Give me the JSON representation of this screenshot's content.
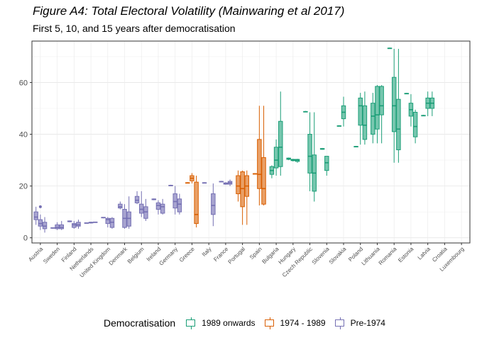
{
  "title": "Figure A4: Total Electoral Volatility (Mainwaring et al 2017)",
  "subtitle": "First 5, 10, and 15 years after democratisation",
  "legend": {
    "title": "Democratisation",
    "items": [
      {
        "label": "1989 onwards",
        "color": "#1b9e77",
        "fill": "#76c6ae"
      },
      {
        "label": "1974 - 1989",
        "color": "#d95f02",
        "fill": "#e9a067"
      },
      {
        "label": "Pre-1974",
        "color": "#7570b3",
        "fill": "#a8a4d0"
      }
    ]
  },
  "chart_data": {
    "type": "boxplot",
    "ylim": [
      -2,
      76
    ],
    "yticks": [
      0,
      20,
      40,
      60
    ],
    "grid": true,
    "legend_position": "bottom",
    "categories": [
      "Austria",
      "Sweden",
      "Finland",
      "Netherlands",
      "United Kingdom",
      "Denmark",
      "Belgium",
      "Ireland",
      "Germany",
      "Greece",
      "Italy",
      "France",
      "Portugal",
      "Spain",
      "Bulgaria",
      "Hungary",
      "Czech Republic",
      "Slovenia",
      "Slovakia",
      "Poland",
      "Lithuania",
      "Romania",
      "Estonia",
      "Latvia",
      "Croatia",
      "Luxembourg"
    ],
    "boxes": [
      {
        "country": "Austria",
        "group": "Pre-1974",
        "offset": -1,
        "min": 5,
        "q1": 7,
        "median": 8,
        "q3": 10,
        "max": 12
      },
      {
        "country": "Austria",
        "group": "Pre-1974",
        "offset": 0,
        "min": 3,
        "q1": 4.5,
        "median": 5.5,
        "q3": 7,
        "max": 9,
        "outliers": [
          12
        ]
      },
      {
        "country": "Austria",
        "group": "Pre-1974",
        "offset": 1,
        "min": 2,
        "q1": 3.5,
        "median": 4.5,
        "q3": 6,
        "max": 8
      },
      {
        "country": "Sweden",
        "group": "Pre-1974",
        "offset": -1,
        "min": 3.5,
        "q1": 3.7,
        "median": 3.8,
        "q3": 3.9,
        "max": 4
      },
      {
        "country": "Sweden",
        "group": "Pre-1974",
        "offset": 0,
        "min": 3,
        "q1": 3.5,
        "median": 4,
        "q3": 5,
        "max": 6
      },
      {
        "country": "Sweden",
        "group": "Pre-1974",
        "offset": 1,
        "min": 3,
        "q1": 3.5,
        "median": 4,
        "q3": 5,
        "max": 6.5
      },
      {
        "country": "Finland",
        "group": "Pre-1974",
        "offset": -1,
        "min": 6,
        "q1": 6.2,
        "median": 6.3,
        "q3": 6.5,
        "max": 6.7
      },
      {
        "country": "Finland",
        "group": "Pre-1974",
        "offset": 0,
        "min": 3.5,
        "q1": 4,
        "median": 5,
        "q3": 5.5,
        "max": 6.5
      },
      {
        "country": "Finland",
        "group": "Pre-1974",
        "offset": 1,
        "min": 3.5,
        "q1": 4.5,
        "median": 5,
        "q3": 6,
        "max": 7
      },
      {
        "country": "Netherlands",
        "group": "Pre-1974",
        "offset": -1,
        "min": 5.5,
        "q1": 5.6,
        "median": 5.7,
        "q3": 5.8,
        "max": 5.9
      },
      {
        "country": "Netherlands",
        "group": "Pre-1974",
        "offset": 0,
        "min": 5.5,
        "q1": 5.7,
        "median": 5.9,
        "q3": 6,
        "max": 6.2
      },
      {
        "country": "Netherlands",
        "group": "Pre-1974",
        "offset": 1,
        "min": 5.8,
        "q1": 5.9,
        "median": 6,
        "q3": 6.1,
        "max": 6.2
      },
      {
        "country": "United Kingdom",
        "group": "Pre-1974",
        "offset": -1,
        "min": 7.5,
        "q1": 7.7,
        "median": 7.8,
        "q3": 7.9,
        "max": 8
      },
      {
        "country": "United Kingdom",
        "group": "Pre-1974",
        "offset": 0,
        "min": 4,
        "q1": 5.5,
        "median": 7,
        "q3": 7.5,
        "max": 8
      },
      {
        "country": "United Kingdom",
        "group": "Pre-1974",
        "offset": 1,
        "min": 3.5,
        "q1": 4,
        "median": 6,
        "q3": 7.5,
        "max": 8
      },
      {
        "country": "Denmark",
        "group": "Pre-1974",
        "offset": -1,
        "min": 11,
        "q1": 11.5,
        "median": 12,
        "q3": 13,
        "max": 14
      },
      {
        "country": "Denmark",
        "group": "Pre-1974",
        "offset": 0,
        "min": 3.5,
        "q1": 4,
        "median": 7.5,
        "q3": 11,
        "max": 13
      },
      {
        "country": "Denmark",
        "group": "Pre-1974",
        "offset": 1,
        "min": 3.5,
        "q1": 4.5,
        "median": 7.5,
        "q3": 10,
        "max": 16
      },
      {
        "country": "Belgium",
        "group": "Pre-1974",
        "offset": -1,
        "min": 13,
        "q1": 13.5,
        "median": 14.5,
        "q3": 16,
        "max": 18
      },
      {
        "country": "Belgium",
        "group": "Pre-1974",
        "offset": 0,
        "min": 8,
        "q1": 9.5,
        "median": 11,
        "q3": 13,
        "max": 18
      },
      {
        "country": "Belgium",
        "group": "Pre-1974",
        "offset": 1,
        "min": 6.5,
        "q1": 7.5,
        "median": 10,
        "q3": 12,
        "max": 15
      },
      {
        "country": "Ireland",
        "group": "Pre-1974",
        "offset": -1,
        "min": 14.5,
        "q1": 14.7,
        "median": 14.9,
        "q3": 15,
        "max": 15.2
      },
      {
        "country": "Ireland",
        "group": "Pre-1974",
        "offset": 0,
        "min": 9,
        "q1": 11,
        "median": 12.5,
        "q3": 13.5,
        "max": 14.5
      },
      {
        "country": "Ireland",
        "group": "Pre-1974",
        "offset": 1,
        "min": 9,
        "q1": 9.5,
        "median": 12,
        "q3": 13,
        "max": 15
      },
      {
        "country": "Germany",
        "group": "Pre-1974",
        "offset": -1,
        "min": 20,
        "q1": 20.1,
        "median": 20.2,
        "q3": 20.3,
        "max": 20.5
      },
      {
        "country": "Germany",
        "group": "Pre-1974",
        "offset": 0,
        "min": 9,
        "q1": 11.5,
        "median": 14,
        "q3": 17,
        "max": 20
      },
      {
        "country": "Germany",
        "group": "Pre-1974",
        "offset": 1,
        "min": 9,
        "q1": 10,
        "median": 13,
        "q3": 15,
        "max": 17
      },
      {
        "country": "Greece",
        "group": "1974 - 1989",
        "offset": -1,
        "min": 21,
        "q1": 21.1,
        "median": 21.2,
        "q3": 21.3,
        "max": 21.5
      },
      {
        "country": "Greece",
        "group": "1974 - 1989",
        "offset": 0,
        "min": 21,
        "q1": 22,
        "median": 23,
        "q3": 24,
        "max": 25
      },
      {
        "country": "Greece",
        "group": "1974 - 1989",
        "offset": 1,
        "min": 4,
        "q1": 5.5,
        "median": 9,
        "q3": 21.5,
        "max": 24
      },
      {
        "country": "Italy",
        "group": "Pre-1974",
        "offset": -1,
        "min": 21,
        "q1": 21.1,
        "median": 21.2,
        "q3": 21.3,
        "max": 21.5
      },
      {
        "country": "Italy",
        "group": "Pre-1974",
        "offset": 1,
        "min": 4.5,
        "q1": 9,
        "median": 12.5,
        "q3": 17,
        "max": 21
      },
      {
        "country": "France",
        "group": "Pre-1974",
        "offset": -1,
        "min": 21.5,
        "q1": 21.6,
        "median": 21.7,
        "q3": 21.8,
        "max": 22
      },
      {
        "country": "France",
        "group": "Pre-1974",
        "offset": 0,
        "min": 20.5,
        "q1": 20.7,
        "median": 21,
        "q3": 21.2,
        "max": 21.5
      },
      {
        "country": "France",
        "group": "Pre-1974",
        "offset": 1,
        "min": 20,
        "q1": 20.7,
        "median": 21.2,
        "q3": 21.8,
        "max": 22.5
      },
      {
        "country": "Portugal",
        "group": "1974 - 1989",
        "offset": -1,
        "min": 14,
        "q1": 17,
        "median": 20,
        "q3": 24,
        "max": 26
      },
      {
        "country": "Portugal",
        "group": "1974 - 1989",
        "offset": 0,
        "min": 5,
        "q1": 12,
        "median": 19,
        "q3": 25.5,
        "max": 26
      },
      {
        "country": "Portugal",
        "group": "1974 - 1989",
        "offset": 1,
        "min": 5,
        "q1": 16,
        "median": 20,
        "q3": 24,
        "max": 26
      },
      {
        "country": "Spain",
        "group": "1974 - 1989",
        "offset": -1,
        "min": 24.5,
        "q1": 24.6,
        "median": 24.7,
        "q3": 24.8,
        "max": 25
      },
      {
        "country": "Spain",
        "group": "1974 - 1989",
        "offset": 0,
        "min": 12.5,
        "q1": 19,
        "median": 24.5,
        "q3": 38,
        "max": 51
      },
      {
        "country": "Spain",
        "group": "1974 - 1989",
        "offset": 1,
        "min": 12.5,
        "q1": 13,
        "median": 19,
        "q3": 31,
        "max": 51
      },
      {
        "country": "Bulgaria",
        "group": "1989 onwards",
        "offset": -1,
        "min": 23,
        "q1": 24.5,
        "median": 26,
        "q3": 27.5,
        "max": 28
      },
      {
        "country": "Bulgaria",
        "group": "1989 onwards",
        "offset": 0,
        "min": 24,
        "q1": 27,
        "median": 30,
        "q3": 35,
        "max": 38
      },
      {
        "country": "Bulgaria",
        "group": "1989 onwards",
        "offset": 1,
        "min": 24,
        "q1": 27.5,
        "median": 35,
        "q3": 45,
        "max": 56.5
      },
      {
        "country": "Hungary",
        "group": "1989 onwards",
        "offset": -1,
        "min": 30,
        "q1": 30.3,
        "median": 30.5,
        "q3": 30.8,
        "max": 31
      },
      {
        "country": "Hungary",
        "group": "1989 onwards",
        "offset": 0,
        "min": 29.5,
        "q1": 29.8,
        "median": 30,
        "q3": 30.3,
        "max": 30.5
      },
      {
        "country": "Hungary",
        "group": "1989 onwards",
        "offset": 1,
        "min": 29,
        "q1": 29.5,
        "median": 30,
        "q3": 30.3,
        "max": 30.5
      },
      {
        "country": "Czech Republic",
        "group": "1989 onwards",
        "offset": -1,
        "min": 48.5,
        "q1": 48.6,
        "median": 48.7,
        "q3": 48.8,
        "max": 49
      },
      {
        "country": "Czech Republic",
        "group": "1989 onwards",
        "offset": 0,
        "min": 18,
        "q1": 25,
        "median": 31.5,
        "q3": 40,
        "max": 48.5
      },
      {
        "country": "Czech Republic",
        "group": "1989 onwards",
        "offset": 1,
        "min": 14,
        "q1": 18,
        "median": 25,
        "q3": 32,
        "max": 48.5
      },
      {
        "country": "Slovenia",
        "group": "1989 onwards",
        "offset": -1,
        "min": 34,
        "q1": 34.2,
        "median": 34.3,
        "q3": 34.5,
        "max": 34.7
      },
      {
        "country": "Slovenia",
        "group": "1989 onwards",
        "offset": 0,
        "min": 24,
        "q1": 26,
        "median": 29,
        "q3": 31.5,
        "max": 31.5
      },
      {
        "country": "Slovakia",
        "group": "1989 onwards",
        "offset": -1,
        "min": 43,
        "q1": 43.1,
        "median": 43.2,
        "q3": 43.3,
        "max": 43.5
      },
      {
        "country": "Slovakia",
        "group": "1989 onwards",
        "offset": 0,
        "min": 43,
        "q1": 46,
        "median": 48.5,
        "q3": 51,
        "max": 54.5
      },
      {
        "country": "Poland",
        "group": "1989 onwards",
        "offset": -1,
        "min": 35,
        "q1": 35.1,
        "median": 35.2,
        "q3": 35.3,
        "max": 35.5
      },
      {
        "country": "Poland",
        "group": "1989 onwards",
        "offset": 0,
        "min": 36,
        "q1": 43.5,
        "median": 51,
        "q3": 54,
        "max": 56
      },
      {
        "country": "Poland",
        "group": "1989 onwards",
        "offset": 1,
        "min": 36,
        "q1": 38,
        "median": 43.5,
        "q3": 51,
        "max": 56.5
      },
      {
        "country": "Lithuania",
        "group": "1989 onwards",
        "offset": -1,
        "min": 36.5,
        "q1": 40,
        "median": 47,
        "q3": 52,
        "max": 56
      },
      {
        "country": "Lithuania",
        "group": "1989 onwards",
        "offset": 0,
        "min": 36.5,
        "q1": 42,
        "median": 47.5,
        "q3": 58.5,
        "max": 59
      },
      {
        "country": "Lithuania",
        "group": "1989 onwards",
        "offset": 1,
        "min": 36.5,
        "q1": 47.5,
        "median": 51,
        "q3": 58.5,
        "max": 59
      },
      {
        "country": "Romania",
        "group": "1989 onwards",
        "offset": -1,
        "min": 73,
        "q1": 73.1,
        "median": 73.2,
        "q3": 73.3,
        "max": 73.5
      },
      {
        "country": "Romania",
        "group": "1989 onwards",
        "offset": 0,
        "min": 29,
        "q1": 41,
        "median": 51,
        "q3": 62,
        "max": 73
      },
      {
        "country": "Romania",
        "group": "1989 onwards",
        "offset": 1,
        "min": 29,
        "q1": 34,
        "median": 42,
        "q3": 53.5,
        "max": 73
      },
      {
        "country": "Estonia",
        "group": "1989 onwards",
        "offset": -1,
        "min": 55.5,
        "q1": 55.6,
        "median": 55.7,
        "q3": 55.8,
        "max": 56
      },
      {
        "country": "Estonia",
        "group": "1989 onwards",
        "offset": 0,
        "min": 43,
        "q1": 47,
        "median": 49.5,
        "q3": 52,
        "max": 55.5
      },
      {
        "country": "Estonia",
        "group": "1989 onwards",
        "offset": 1,
        "min": 36.5,
        "q1": 39,
        "median": 43,
        "q3": 48.5,
        "max": 49.5
      },
      {
        "country": "Latvia",
        "group": "1989 onwards",
        "offset": -1,
        "min": 47,
        "q1": 47.1,
        "median": 47.2,
        "q3": 47.3,
        "max": 47.5
      },
      {
        "country": "Latvia",
        "group": "1989 onwards",
        "offset": 0,
        "min": 47,
        "q1": 50,
        "median": 52,
        "q3": 54,
        "max": 56.5
      },
      {
        "country": "Latvia",
        "group": "1989 onwards",
        "offset": 1,
        "min": 47,
        "q1": 50,
        "median": 52,
        "q3": 54,
        "max": 56.5
      }
    ]
  }
}
